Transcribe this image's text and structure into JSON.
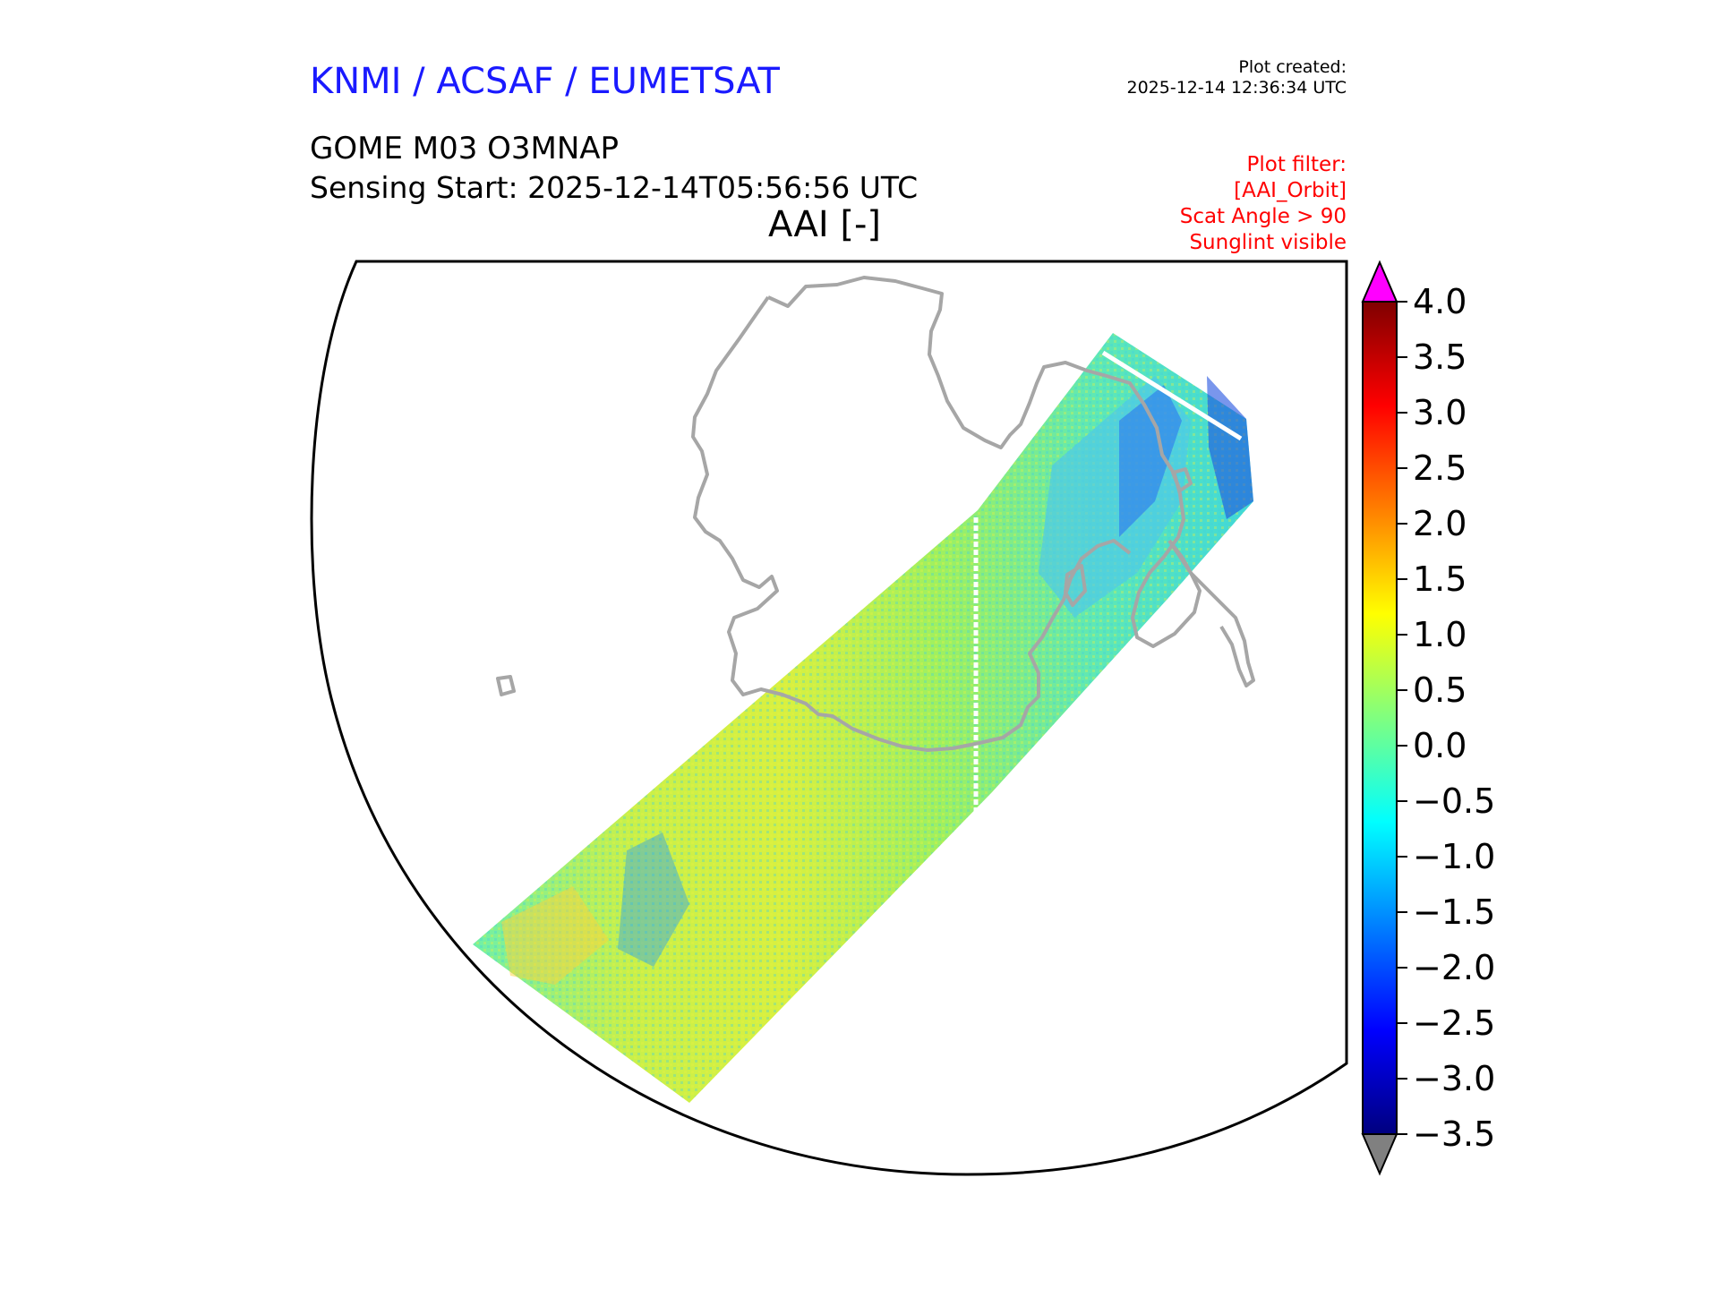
{
  "header": {
    "organization": "KNMI / ACSAF / EUMETSAT",
    "created_label": "Plot created:",
    "created_time": "2025-12-14 12:36:34 UTC",
    "product": "GOME M03 O3MNAP",
    "sensing_start": "Sensing Start: 2025-12-14T05:56:56 UTC",
    "variable": "AAI [-]"
  },
  "filter": {
    "lines": [
      "Plot filter:",
      "[AAI_Orbit]",
      "Scat Angle > 90",
      "Sunglint visible"
    ]
  },
  "chart_data": {
    "type": "heatmap",
    "title": "AAI [-]",
    "colorbar": {
      "min": -3.5,
      "max": 4.0,
      "ticks": [
        4.0,
        3.5,
        3.0,
        2.5,
        2.0,
        1.5,
        1.0,
        0.5,
        0.0,
        -0.5,
        -1.0,
        -1.5,
        -2.0,
        -2.5,
        -3.0,
        -3.5
      ],
      "tick_labels": [
        "4.0",
        "3.5",
        "3.0",
        "2.5",
        "2.0",
        "1.5",
        "1.0",
        "0.5",
        "0.0",
        "−0.5",
        "−1.0",
        "−1.5",
        "−2.0",
        "−2.5",
        "−3.0",
        "−3.5"
      ],
      "over_color": "#ff00ff",
      "under_color": "#808080",
      "colormap": "jet"
    },
    "swath_typical_range": [
      -0.5,
      1.5
    ]
  },
  "colors": {
    "title_blue": "#1a1aff",
    "filter_red": "#ff0000",
    "coastline": "#a6a6a6"
  }
}
